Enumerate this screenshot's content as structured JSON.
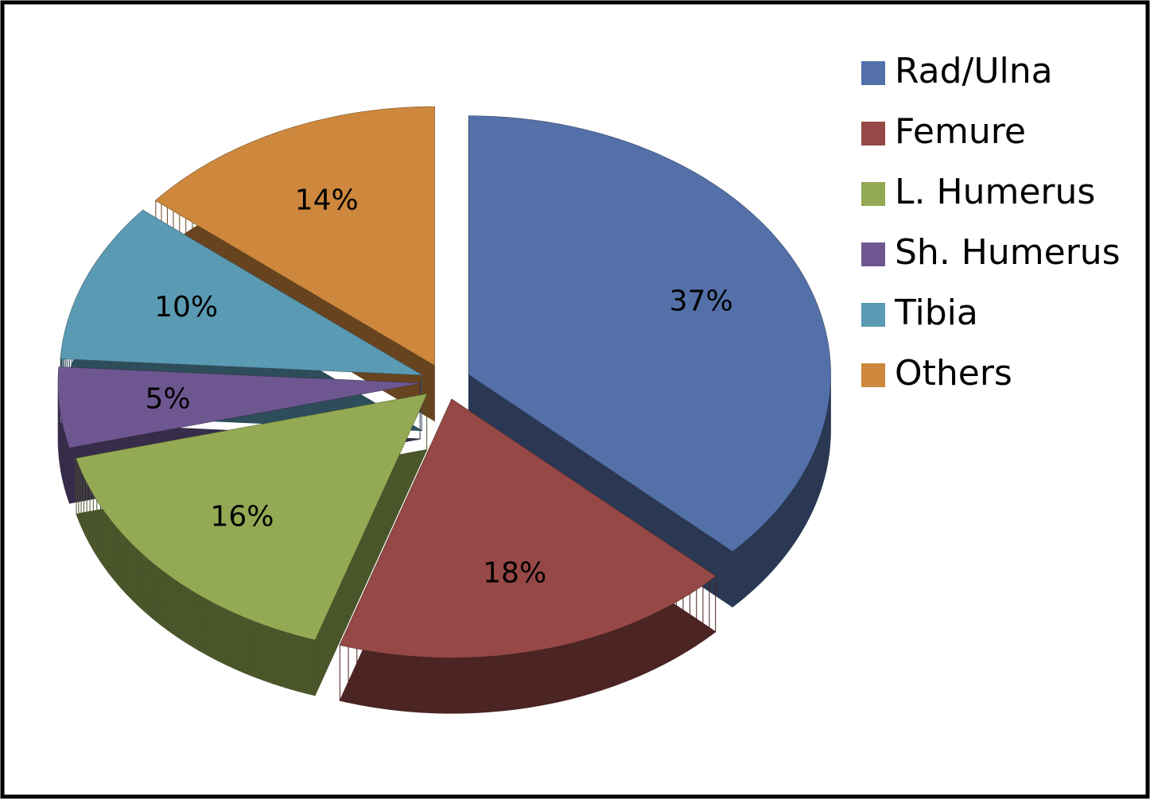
{
  "chart_data": {
    "type": "pie",
    "style": "3d-exploded",
    "categories": [
      "Rad/Ulna",
      "Femure",
      "L. Humerus",
      "Sh. Humerus",
      "Tibia",
      "Others"
    ],
    "values": [
      37,
      18,
      16,
      5,
      10,
      14
    ],
    "value_labels": [
      "37%",
      "18%",
      "16%",
      "5%",
      "10%",
      "14%"
    ],
    "colors": [
      "#5470a8",
      "#954845",
      "#93a954",
      "#6e5791",
      "#5b9ab3",
      "#cd883d"
    ],
    "legend": "right"
  }
}
